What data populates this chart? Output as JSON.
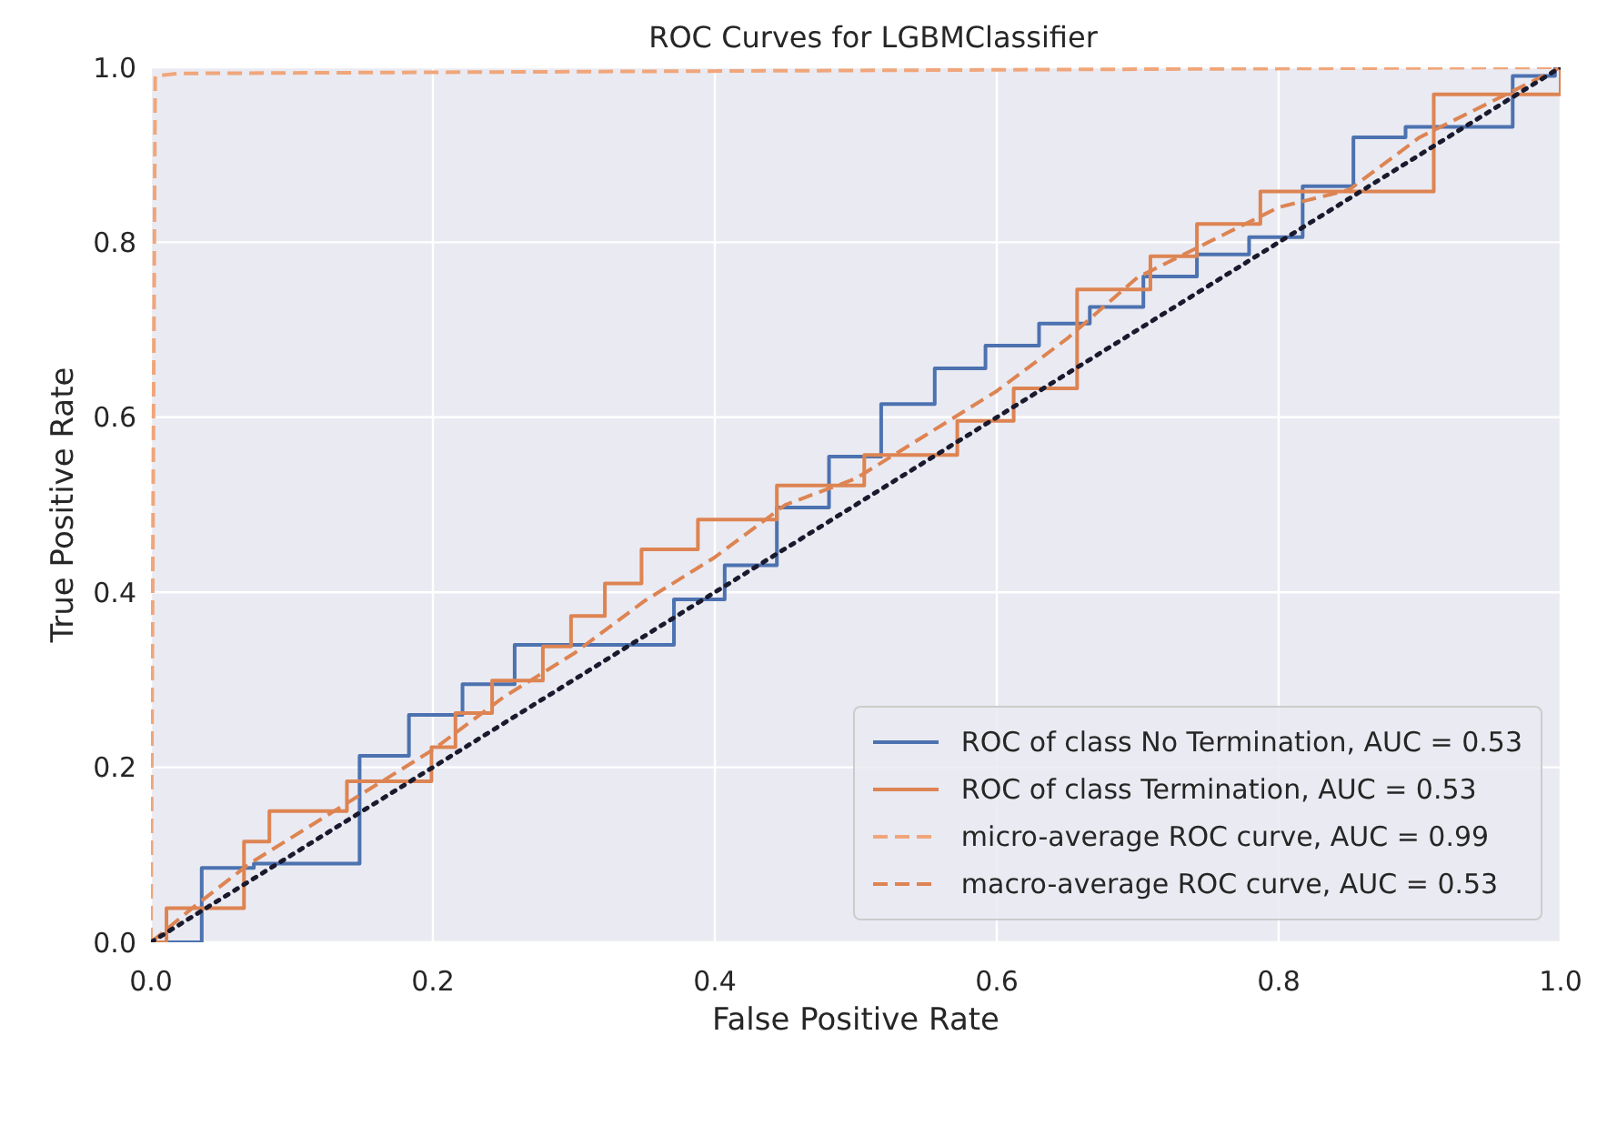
{
  "chart_data": {
    "type": "line",
    "title": "ROC Curves for LGBMClassifier",
    "xlabel": "False Positive Rate",
    "ylabel": "True Positive Rate",
    "xlim": [
      0,
      1
    ],
    "ylim": [
      0,
      1
    ],
    "xticks": [
      {
        "value": 0,
        "label": "0.0"
      },
      {
        "value": 0.2,
        "label": "0.2"
      },
      {
        "value": 0.4,
        "label": "0.4"
      },
      {
        "value": 0.6,
        "label": "0.6"
      },
      {
        "value": 0.8,
        "label": "0.8"
      },
      {
        "value": 1,
        "label": "1.0"
      }
    ],
    "yticks": [
      {
        "value": 0,
        "label": "0.0"
      },
      {
        "value": 0.2,
        "label": "0.2"
      },
      {
        "value": 0.4,
        "label": "0.4"
      },
      {
        "value": 0.6,
        "label": "0.6"
      },
      {
        "value": 0.8,
        "label": "0.8"
      },
      {
        "value": 1,
        "label": "1.0"
      }
    ],
    "grid": true,
    "legend": "bottom right",
    "series": [
      {
        "name": "ROC of class No Termination, AUC = 0.53",
        "color": "#4c72b0",
        "line_style": "solid",
        "x": [
          0,
          0.036,
          0.036,
          0.073,
          0.073,
          0.148,
          0.148,
          0.183,
          0.183,
          0.221,
          0.221,
          0.258,
          0.258,
          0.295,
          0.295,
          0.371,
          0.371,
          0.407,
          0.407,
          0.444,
          0.444,
          0.481,
          0.481,
          0.518,
          0.518,
          0.556,
          0.556,
          0.592,
          0.592,
          0.63,
          0.63,
          0.666,
          0.666,
          0.704,
          0.704,
          0.742,
          0.742,
          0.779,
          0.779,
          0.817,
          0.817,
          0.853,
          0.853,
          0.89,
          0.89,
          0.927,
          0.927,
          0.966,
          0.966,
          0.996,
          0.996,
          1
        ],
        "values": [
          0,
          0,
          0.085,
          0.085,
          0.09,
          0.09,
          0.213,
          0.213,
          0.26,
          0.26,
          0.295,
          0.295,
          0.34,
          0.34,
          0.34,
          0.34,
          0.392,
          0.392,
          0.431,
          0.431,
          0.497,
          0.497,
          0.555,
          0.555,
          0.615,
          0.615,
          0.656,
          0.656,
          0.682,
          0.682,
          0.707,
          0.707,
          0.726,
          0.726,
          0.761,
          0.761,
          0.786,
          0.786,
          0.806,
          0.806,
          0.864,
          0.864,
          0.92,
          0.92,
          0.932,
          0.932,
          0.932,
          0.932,
          0.99,
          0.99,
          1,
          1
        ]
      },
      {
        "name": "ROC of class Termination, AUC = 0.53",
        "color": "#dd8452",
        "line_style": "solid",
        "x": [
          0,
          0.011,
          0.011,
          0.066,
          0.066,
          0.084,
          0.084,
          0.139,
          0.139,
          0.199,
          0.199,
          0.216,
          0.216,
          0.242,
          0.242,
          0.278,
          0.278,
          0.298,
          0.298,
          0.322,
          0.322,
          0.348,
          0.348,
          0.388,
          0.388,
          0.444,
          0.444,
          0.506,
          0.506,
          0.572,
          0.572,
          0.612,
          0.612,
          0.657,
          0.657,
          0.709,
          0.709,
          0.742,
          0.742,
          0.787,
          0.787,
          0.91,
          0.91,
          0.996,
          0.996,
          1,
          1
        ],
        "values": [
          0,
          0,
          0.039,
          0.039,
          0.115,
          0.115,
          0.15,
          0.15,
          0.184,
          0.184,
          0.223,
          0.223,
          0.262,
          0.262,
          0.299,
          0.299,
          0.338,
          0.338,
          0.373,
          0.373,
          0.41,
          0.41,
          0.449,
          0.449,
          0.483,
          0.483,
          0.522,
          0.522,
          0.557,
          0.557,
          0.596,
          0.596,
          0.633,
          0.633,
          0.746,
          0.746,
          0.784,
          0.784,
          0.821,
          0.821,
          0.858,
          0.858,
          0.969,
          0.969,
          0.969,
          0.969,
          1
        ]
      },
      {
        "name": "micro-average ROC curve, AUC = 0.99",
        "color": "#f0a67a",
        "line_style": "dashed",
        "x": [
          0,
          0.003,
          0.02,
          1
        ],
        "values": [
          0,
          0.99,
          0.993,
          1
        ]
      },
      {
        "name": "macro-average ROC curve, AUC = 0.53",
        "color": "#dd8452",
        "line_style": "dashed",
        "x": [
          0,
          0.03,
          0.07,
          0.15,
          0.2,
          0.25,
          0.3,
          0.35,
          0.4,
          0.45,
          0.5,
          0.55,
          0.6,
          0.65,
          0.7,
          0.75,
          0.8,
          0.85,
          0.9,
          0.95,
          1
        ],
        "values": [
          0,
          0.04,
          0.09,
          0.17,
          0.22,
          0.28,
          0.33,
          0.39,
          0.44,
          0.5,
          0.53,
          0.58,
          0.63,
          0.69,
          0.76,
          0.8,
          0.84,
          0.86,
          0.92,
          0.96,
          1
        ]
      },
      {
        "color": "#1a1a2e",
        "line_style": "dotted",
        "x": [
          0,
          1
        ],
        "values": [
          0,
          1
        ]
      }
    ]
  }
}
